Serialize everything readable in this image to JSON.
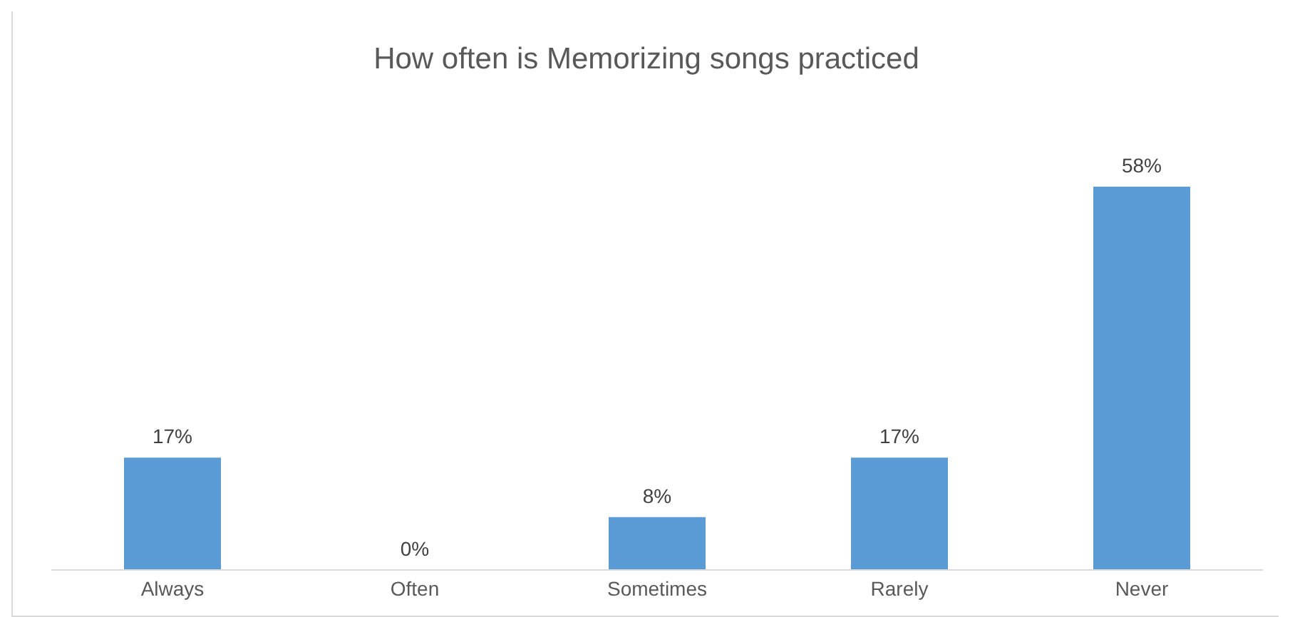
{
  "chart_data": {
    "type": "bar",
    "title": "How often is Memorizing songs practiced",
    "categories": [
      "Always",
      "Often",
      "Sometimes",
      "Rarely",
      "Never"
    ],
    "values": [
      17,
      0,
      8,
      17,
      58
    ],
    "value_labels": [
      "17%",
      "0%",
      "8%",
      "17%",
      "58%"
    ],
    "color": "#5b9bd5",
    "grid": false,
    "legend": false
  }
}
